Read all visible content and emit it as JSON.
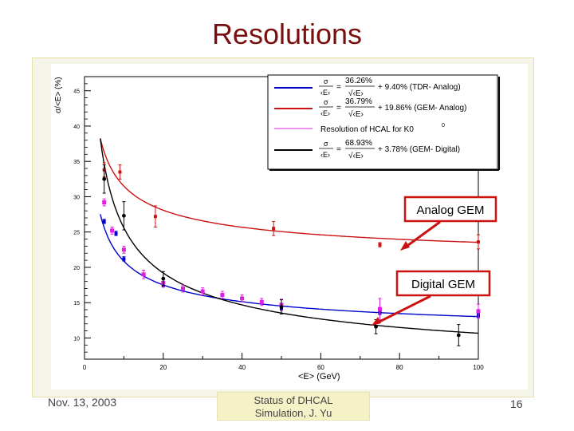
{
  "slide": {
    "title": "Resolutions",
    "footer_date": "Nov. 13, 2003",
    "footer_center_line1": "Status of DHCAL",
    "footer_center_line2": "Simulation, J. Yu",
    "page_number": "16"
  },
  "colors": {
    "tdr_analog": "#0000cc",
    "gem_analog": "#cc1111",
    "hcal_k0": "#e020e0",
    "gem_digital": "#000000",
    "callout": "#cc1111",
    "title": "#7a0f0f"
  },
  "chart_data": {
    "type": "scatter",
    "title": "",
    "xlabel": "<E> (GeV)",
    "ylabel": "σ/<E> (%)",
    "xlim": [
      0,
      100
    ],
    "ylim": [
      7,
      47
    ],
    "x_ticks": [
      "0",
      "20",
      "40",
      "60",
      "80",
      "100"
    ],
    "y_ticks": [
      "10",
      "15",
      "20",
      "25",
      "30",
      "35",
      "40",
      "45"
    ],
    "grid": false,
    "legend_position": "top-right",
    "legend": [
      {
        "series": "tdr_analog",
        "fit_label": "σ/<E> = 36.26%/√<E> + 9.40% (TDR- Analog)",
        "coef": "36.26%",
        "const": "+ 9.40% (TDR- Analog)"
      },
      {
        "series": "gem_analog",
        "fit_label": "σ/<E> = 36.79%/√<E> + 19.86% (GEM- Analog)",
        "coef": "36.79%",
        "const": "+ 19.86% (GEM- Analog)"
      },
      {
        "series": "hcal_k0",
        "fit_label": "Resolution of HCAL for K0",
        "coef": "",
        "const": "Resolution of HCAL for K0"
      },
      {
        "series": "gem_digital",
        "fit_label": "σ/<E> = 68.93%/√<E> + 3.78% (GEM- Digital)",
        "coef": "68.93%",
        "const": "+ 3.78% (GEM- Digital)"
      }
    ],
    "series": [
      {
        "name": "TDR- Analog",
        "key": "tdr_analog",
        "fit": {
          "a": 36.26,
          "b": 9.4
        },
        "x": [
          5,
          8,
          10,
          20,
          50,
          75,
          100
        ],
        "y": [
          26.5,
          24.8,
          21.2,
          17.5,
          14.2,
          13.6,
          13.2
        ],
        "err": [
          0.3,
          0.3,
          0.3,
          0.3,
          0.3,
          0.3,
          0.3
        ]
      },
      {
        "name": "GEM- Analog",
        "key": "gem_analog",
        "fit": {
          "a": 36.79,
          "b": 19.86
        },
        "x": [
          5,
          9,
          18,
          48,
          75,
          100
        ],
        "y": [
          33.8,
          33.5,
          27.2,
          25.5,
          23.2,
          23.6
        ],
        "err": [
          1.0,
          1.0,
          1.5,
          1.0,
          0.3,
          1.0
        ]
      },
      {
        "name": "Resolution of HCAL for K0",
        "key": "hcal_k0",
        "x": [
          5,
          7,
          10,
          15,
          20,
          25,
          30,
          35,
          40,
          45,
          50,
          75,
          100
        ],
        "y": [
          29.2,
          25.2,
          22.5,
          19.0,
          17.8,
          17.0,
          16.6,
          16.1,
          15.6,
          15.1,
          14.7,
          14.1,
          13.8
        ],
        "err": [
          0.5,
          0.5,
          0.5,
          0.6,
          0.6,
          0.5,
          0.5,
          0.5,
          0.5,
          0.5,
          0.8,
          1.5,
          1.0
        ]
      },
      {
        "name": "GEM- Digital",
        "key": "gem_digital",
        "fit": {
          "a": 68.93,
          "b": 3.78
        },
        "x": [
          5,
          10,
          20,
          50,
          74,
          95
        ],
        "y": [
          32.5,
          27.3,
          18.4,
          14.4,
          11.6,
          10.4
        ],
        "err": [
          2.0,
          2.0,
          1.0,
          1.0,
          1.0,
          1.5
        ]
      }
    ],
    "annotations": [
      {
        "label": "Analog GEM",
        "target_series": "gem_analog"
      },
      {
        "label": "Digital GEM",
        "target_series": "gem_digital"
      }
    ]
  }
}
